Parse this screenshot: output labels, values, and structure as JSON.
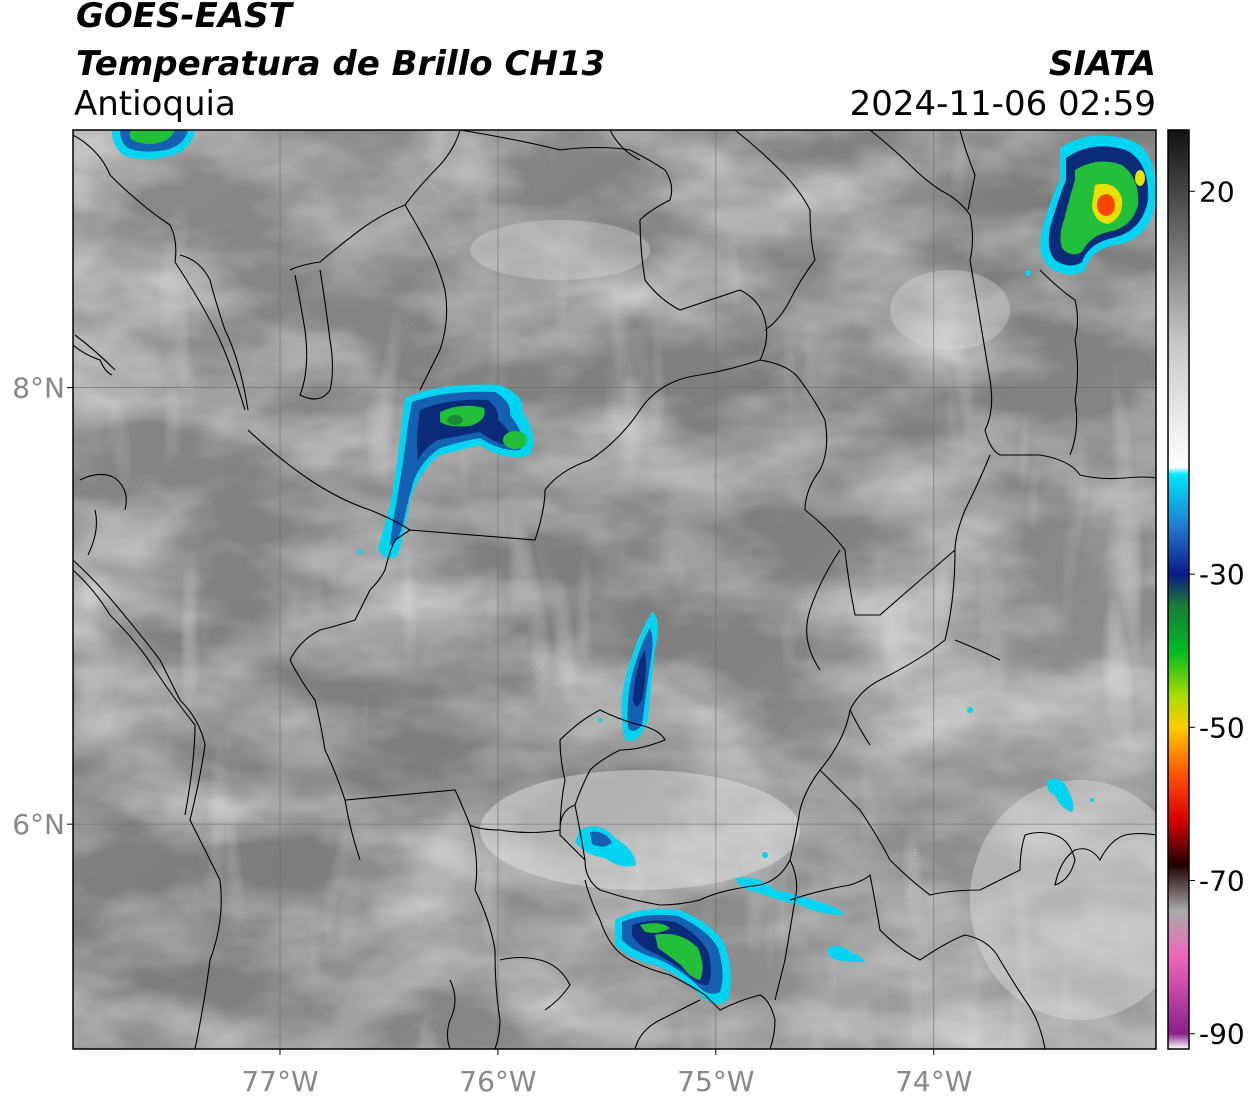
{
  "header": {
    "satellite": "GOES-EAST",
    "product": "Temperatura de Brillo CH13",
    "region": "Antioquia",
    "organization": "SIATA",
    "datetime": "2024-11-06 02:59"
  },
  "map": {
    "lon_range": [
      -77.95,
      -72.98
    ],
    "lat_range": [
      4.97,
      9.18
    ],
    "lon_ticks": [
      {
        "value": -77,
        "label": "77°W"
      },
      {
        "value": -76,
        "label": "76°W"
      },
      {
        "value": -75,
        "label": "75°W"
      },
      {
        "value": -74,
        "label": "74°W"
      }
    ],
    "lat_ticks": [
      {
        "value": 8,
        "label": "8°N"
      },
      {
        "value": 6,
        "label": "6°N"
      }
    ],
    "grid": true
  },
  "colorbar": {
    "range": [
      -92,
      28
    ],
    "ticks": [
      {
        "value": 20,
        "label": "20"
      },
      {
        "value": -30,
        "label": "-30"
      },
      {
        "value": -50,
        "label": "-50"
      },
      {
        "value": -70,
        "label": "-70"
      },
      {
        "value": -90,
        "label": "-90"
      }
    ],
    "stops": [
      {
        "value": 28,
        "color": "#111111"
      },
      {
        "value": 0,
        "color": "#c8c8c8"
      },
      {
        "value": -16,
        "color": "#ffffff"
      },
      {
        "value": -17,
        "color": "#00e5ff"
      },
      {
        "value": -24,
        "color": "#2277cc"
      },
      {
        "value": -30,
        "color": "#0a1a88"
      },
      {
        "value": -34,
        "color": "#1a7a3a"
      },
      {
        "value": -40,
        "color": "#00bb22"
      },
      {
        "value": -46,
        "color": "#aadd00"
      },
      {
        "value": -50,
        "color": "#ffcc00"
      },
      {
        "value": -56,
        "color": "#ff5500"
      },
      {
        "value": -62,
        "color": "#dd0000"
      },
      {
        "value": -68,
        "color": "#220000"
      },
      {
        "value": -74,
        "color": "#aaaaaa"
      },
      {
        "value": -80,
        "color": "#ee66bb"
      },
      {
        "value": -90,
        "color": "#882288"
      },
      {
        "value": -92,
        "color": "#ffffff"
      }
    ]
  },
  "storm_colors": {
    "edge": "#00d4f0",
    "mid": "#1560b0",
    "core_dark": "#0a2a7a",
    "core_green": "#22c03a",
    "core_yellow": "#e8e000",
    "core_red": "#ff4400"
  }
}
